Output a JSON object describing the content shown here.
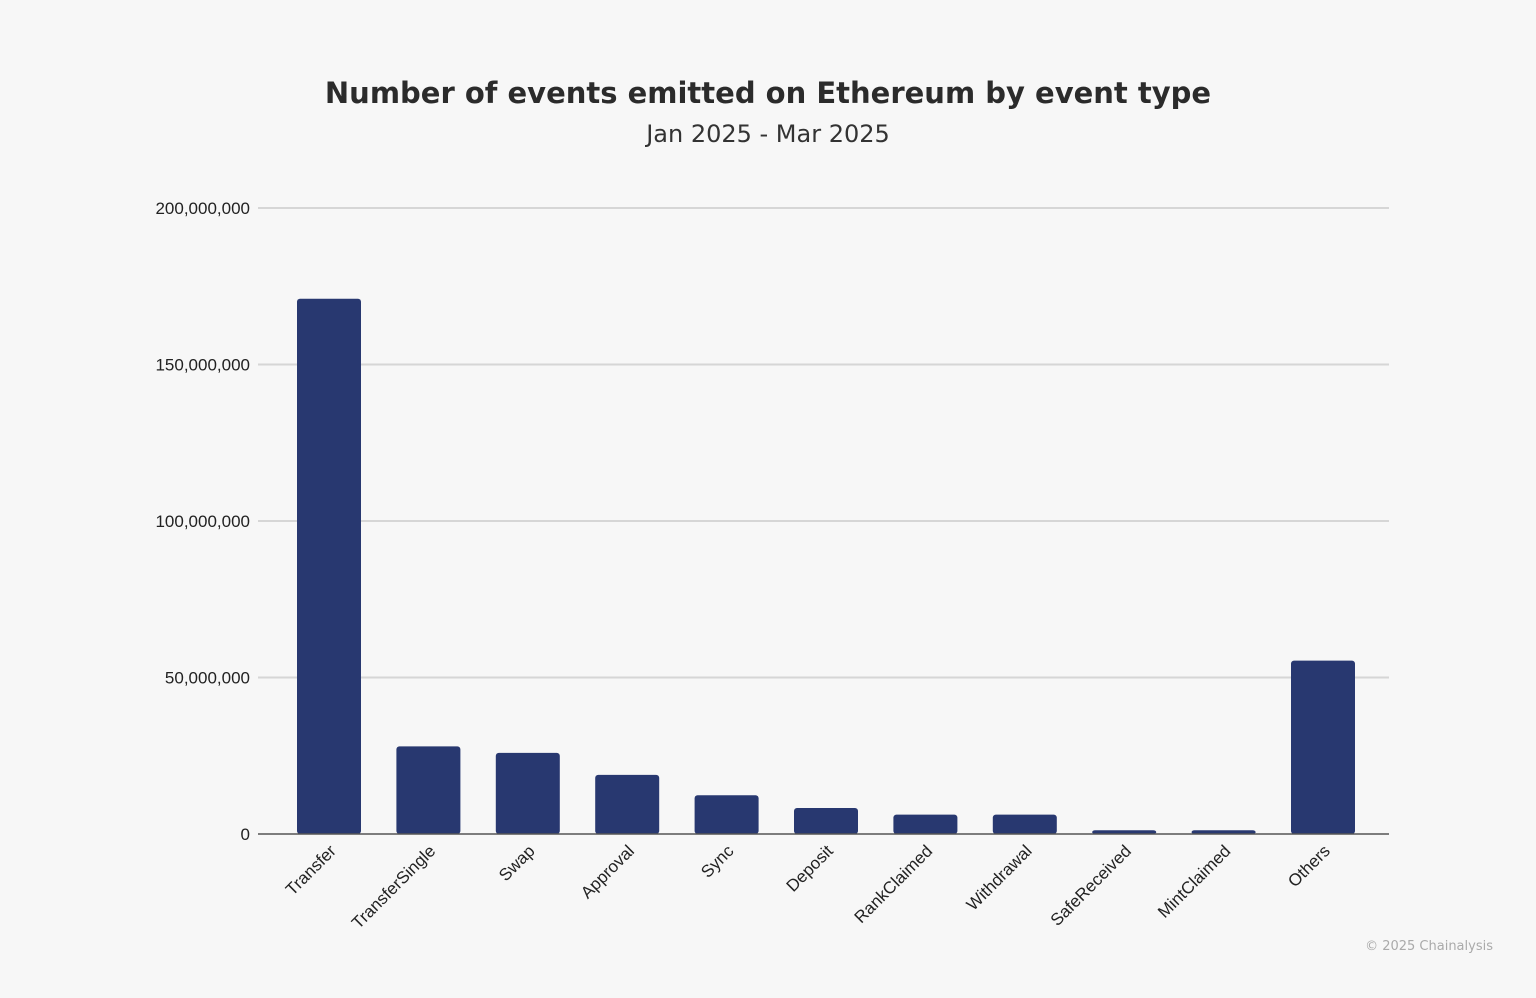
{
  "chart_data": {
    "type": "bar",
    "title": "Number of events emitted on Ethereum by event type",
    "subtitle": "Jan 2025 - Mar 2025",
    "xlabel": "",
    "ylabel": "",
    "ylim": [
      0,
      200000000
    ],
    "yticks": [
      0,
      50000000,
      100000000,
      150000000,
      200000000
    ],
    "ytick_labels": [
      "0",
      "50,000,000",
      "100,000,000",
      "150,000,000",
      "200,000,000"
    ],
    "grid": true,
    "categories": [
      "Transfer",
      "TransferSingle",
      "Swap",
      "Approval",
      "Sync",
      "Deposit",
      "RankClaimed",
      "Withdrawal",
      "SafeReceived",
      "MintClaimed",
      "Others"
    ],
    "values": [
      171000000,
      28000000,
      25900000,
      18900000,
      12400000,
      8300000,
      6200000,
      6200000,
      1200000,
      1200000,
      55400000
    ],
    "bar_color": "#283870"
  },
  "credit": "© 2025 Chainalysis"
}
